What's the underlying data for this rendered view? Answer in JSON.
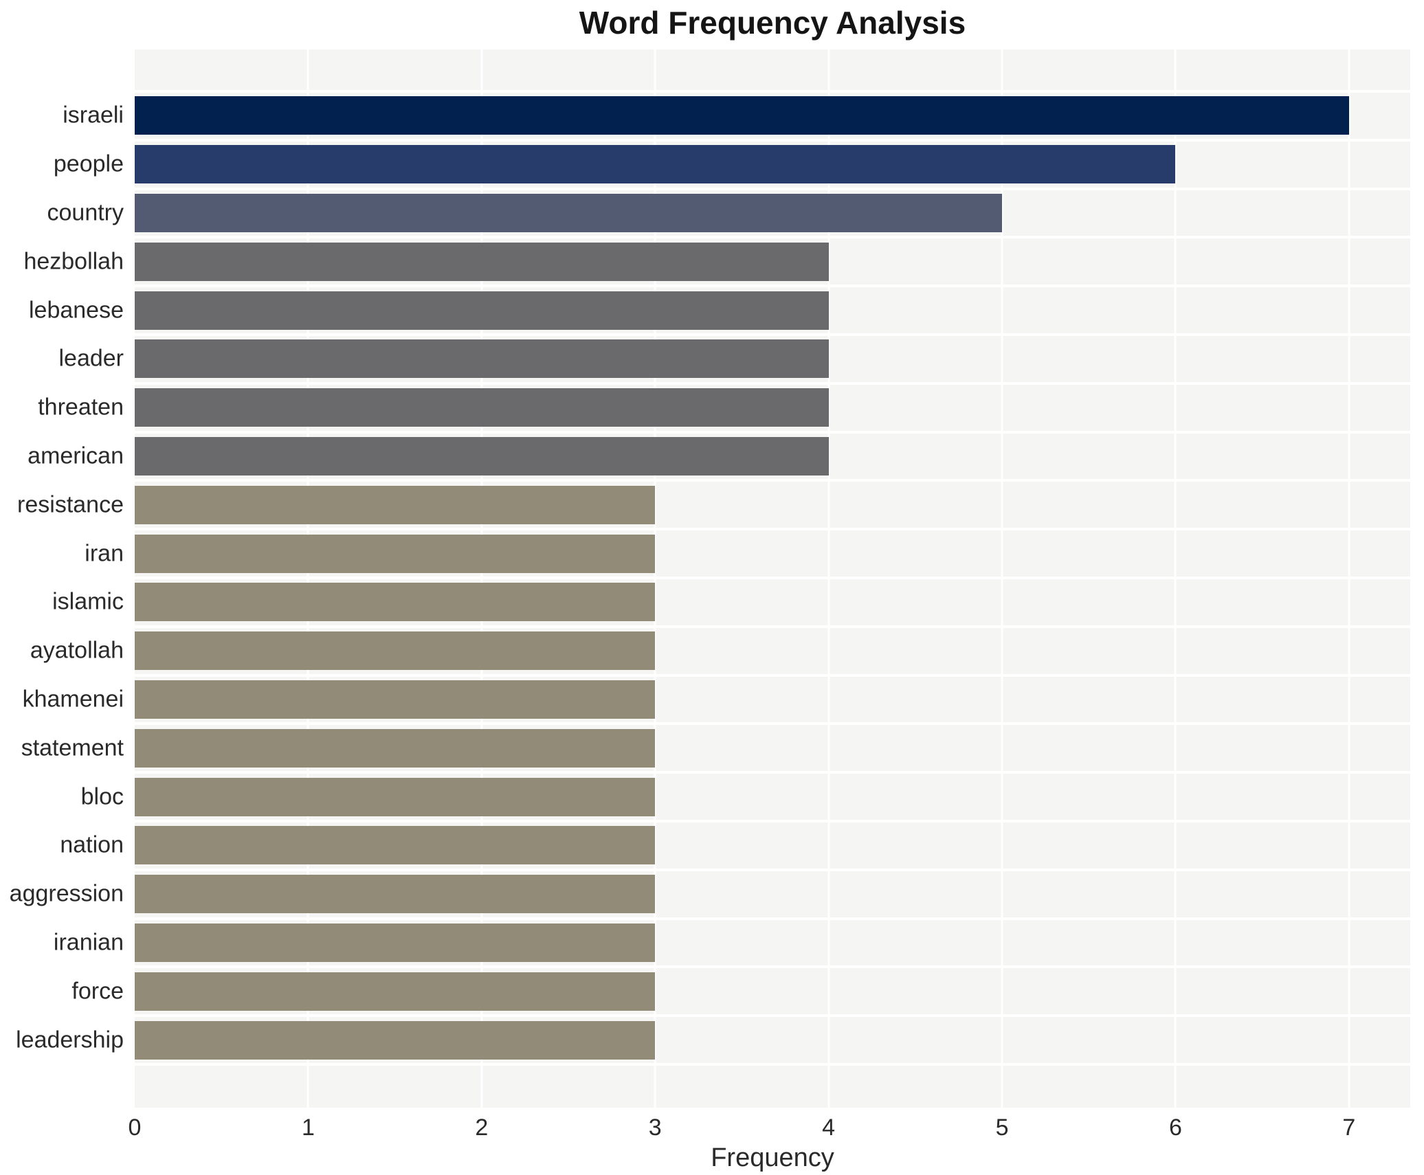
{
  "title": "Word Frequency Analysis",
  "xlabel": "Frequency",
  "chart_data": {
    "type": "bar",
    "orientation": "horizontal",
    "title": "Word Frequency Analysis",
    "xlabel": "Frequency",
    "ylabel": "",
    "categories": [
      "israeli",
      "people",
      "country",
      "hezbollah",
      "lebanese",
      "leader",
      "threaten",
      "american",
      "resistance",
      "iran",
      "islamic",
      "ayatollah",
      "khamenei",
      "statement",
      "bloc",
      "nation",
      "aggression",
      "iranian",
      "force",
      "leadership"
    ],
    "values": [
      7,
      6,
      5,
      4,
      4,
      4,
      4,
      4,
      3,
      3,
      3,
      3,
      3,
      3,
      3,
      3,
      3,
      3,
      3,
      3
    ],
    "xticks": [
      0,
      1,
      2,
      3,
      4,
      5,
      6,
      7
    ],
    "xlim": [
      0,
      7.353
    ],
    "grid": "white gridlines, vertical at integer ticks and horizontal between category rows",
    "legend": false,
    "colors": {
      "bar_by_value": {
        "7": "#03214e",
        "6": "#273c6b",
        "5": "#535b72",
        "4": "#6a6a6d",
        "3": "#928b77"
      },
      "plot_background": "#f5f5f4",
      "page_background": "#ffffff",
      "gridline": "#ffffff",
      "text": "#2a2a2a",
      "title_text": "#151515"
    }
  }
}
